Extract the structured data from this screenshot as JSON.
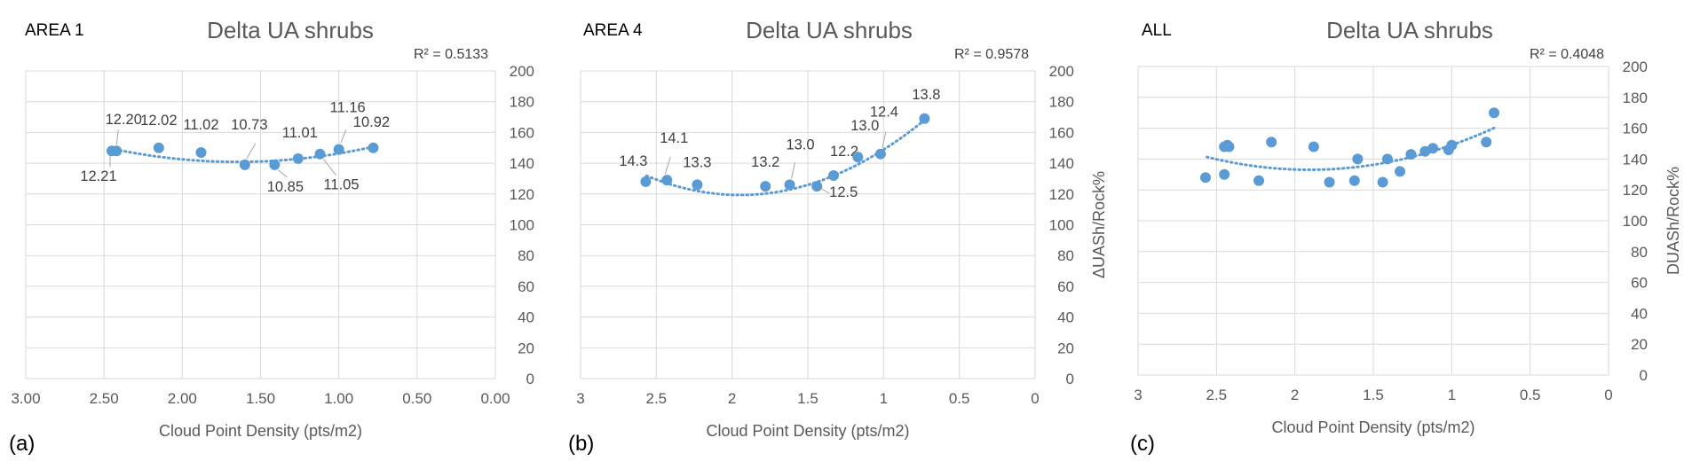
{
  "colors": {
    "marker": "#5b9bd5",
    "trend": "#5b9bd5",
    "grid": "#d9d9d9",
    "axis_text": "#595959"
  },
  "chart_data": [
    {
      "type": "scatter",
      "area_label": "AREA 1",
      "panel_label": "(a)",
      "title": "Delta UA shrubs",
      "r2_label": "R² = 0.5133",
      "xlabel": "Cloud Point Density (pts/m2)",
      "ylabel": "",
      "xlim": [
        0,
        3
      ],
      "x_reversed": true,
      "ylim": [
        0,
        200
      ],
      "xticks": [
        3,
        2.5,
        2,
        1.5,
        1,
        0.5,
        0
      ],
      "xtick_labels": [
        "3.00",
        "2.50",
        "2.00",
        "1.50",
        "1.00",
        "0.50",
        "0.00"
      ],
      "yticks": [
        0,
        20,
        40,
        60,
        80,
        100,
        120,
        140,
        160,
        180,
        200
      ],
      "ytick_labels": [
        "0",
        "20",
        "40",
        "60",
        "80",
        "100",
        "120",
        "140",
        "160",
        "180",
        "200"
      ],
      "x": [
        2.45,
        2.42,
        2.15,
        1.88,
        1.6,
        1.41,
        1.26,
        1.12,
        1.0,
        0.78
      ],
      "y": [
        148,
        148,
        150,
        147,
        139,
        139,
        143,
        146,
        149,
        150
      ],
      "point_labels": [
        "12.21",
        "12.20",
        "12.02",
        "11.02",
        "10.73",
        "10.85",
        "11.01",
        "11.05",
        "11.16",
        "10.92"
      ],
      "trend": {
        "type": "poly2",
        "x": [
          2.45,
          1.95,
          1.65,
          1.35,
          0.78
        ],
        "y": [
          149,
          143,
          141,
          141,
          151
        ]
      }
    },
    {
      "type": "scatter",
      "area_label": "AREA 4",
      "panel_label": "(b)",
      "title": "Delta UA shrubs",
      "r2_label": "R² = 0.9578",
      "xlabel": "Cloud Point Density (pts/m2)",
      "ylabel": "ΔUASh/Rock%",
      "xlim": [
        0,
        3
      ],
      "x_reversed": true,
      "ylim": [
        0,
        200
      ],
      "xticks": [
        3,
        2.5,
        2,
        1.5,
        1,
        0.5,
        0
      ],
      "xtick_labels": [
        "3",
        "2.5",
        "2",
        "1.5",
        "1",
        "0.5",
        "0"
      ],
      "yticks": [
        0,
        20,
        40,
        60,
        80,
        100,
        120,
        140,
        160,
        180,
        200
      ],
      "ytick_labels": [
        "0",
        "20",
        "40",
        "60",
        "80",
        "100",
        "120",
        "140",
        "160",
        "180",
        "200"
      ],
      "x": [
        2.57,
        2.43,
        2.23,
        1.78,
        1.62,
        1.44,
        1.33,
        1.17,
        1.02,
        0.73
      ],
      "y": [
        128,
        129,
        126,
        125,
        126,
        125,
        132,
        144,
        146,
        169
      ],
      "point_labels": [
        "14.3",
        "14.1",
        "13.3",
        "13.2",
        "13.0",
        "12.5",
        "12.2",
        "13.0",
        "12.4",
        "13.8"
      ],
      "trend": {
        "type": "poly2",
        "x": [
          2.57,
          2.2,
          1.95,
          1.6,
          1.3,
          1.05,
          0.73
        ],
        "y": [
          130,
          124,
          121,
          123,
          131,
          144,
          170
        ]
      }
    },
    {
      "type": "scatter",
      "area_label": "ALL",
      "panel_label": "(c)",
      "title": "Delta UA shrubs",
      "r2_label": "R² = 0.4048",
      "xlabel": "Cloud Point Density (pts/m2)",
      "ylabel": "DUASh/Rock%",
      "xlim": [
        0,
        3
      ],
      "x_reversed": true,
      "ylim": [
        0,
        200
      ],
      "xticks": [
        3,
        2.5,
        2,
        1.5,
        1,
        0.5,
        0
      ],
      "xtick_labels": [
        "3",
        "2.5",
        "2",
        "1.5",
        "1",
        "0.5",
        "0"
      ],
      "yticks": [
        0,
        20,
        40,
        60,
        80,
        100,
        120,
        140,
        160,
        180,
        200
      ],
      "ytick_labels": [
        "0",
        "20",
        "40",
        "60",
        "80",
        "100",
        "120",
        "140",
        "160",
        "180",
        "200"
      ],
      "x": [
        2.57,
        2.45,
        2.43,
        2.45,
        2.42,
        2.23,
        2.15,
        1.88,
        1.78,
        1.62,
        1.6,
        1.44,
        1.41,
        1.33,
        1.26,
        1.17,
        1.12,
        1.02,
        1.0,
        0.78,
        0.73
      ],
      "y": [
        128,
        130,
        149,
        148,
        148,
        126,
        151,
        148,
        125,
        126,
        140,
        125,
        140,
        132,
        143,
        145,
        147,
        146,
        149,
        151,
        170
      ],
      "point_labels": [],
      "trend": {
        "type": "poly2",
        "x": [
          2.57,
          2.2,
          1.95,
          1.6,
          1.3,
          1.05,
          0.73
        ],
        "y": [
          141,
          136,
          133,
          134,
          140,
          148,
          160
        ]
      }
    }
  ]
}
